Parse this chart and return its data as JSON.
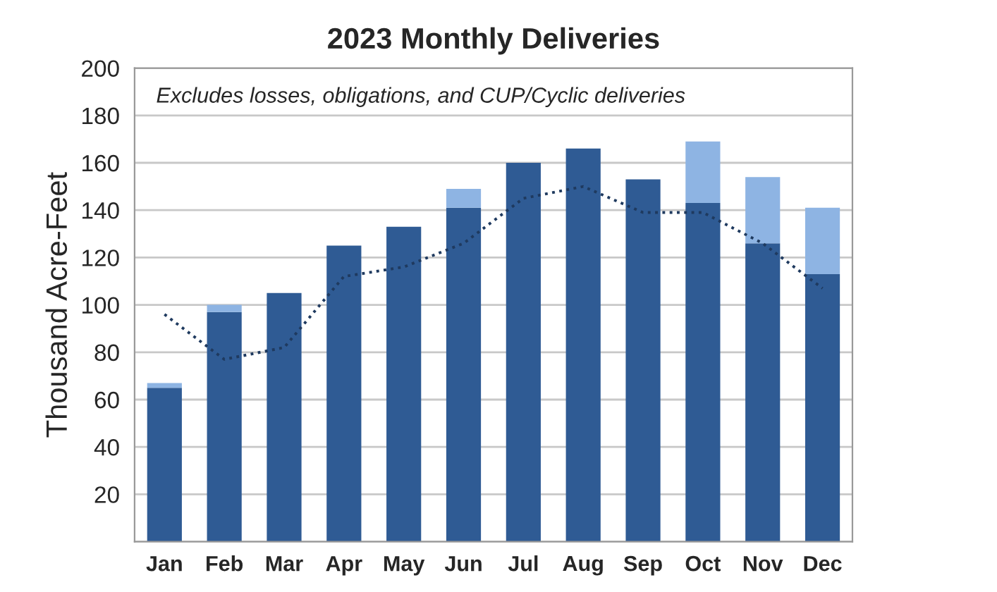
{
  "chart_data": {
    "type": "bar",
    "title": "2023 Monthly Deliveries",
    "ylabel": "Thousand Acre-Feet",
    "annotations": [
      "Excludes losses, obligations, and CUP/Cyclic deliveries"
    ],
    "categories": [
      "Jan",
      "Feb",
      "Mar",
      "Apr",
      "May",
      "Jun",
      "Jul",
      "Aug",
      "Sep",
      "Oct",
      "Nov",
      "Dec"
    ],
    "stacked": true,
    "series": [
      {
        "color": "#2f5b94",
        "values": [
          65,
          97,
          105,
          125,
          133,
          141,
          160,
          166,
          153,
          143,
          126,
          113
        ]
      },
      {
        "color": "#8eb4e3",
        "values": [
          2,
          3,
          null,
          null,
          null,
          8,
          null,
          null,
          null,
          26,
          28,
          28
        ]
      },
      {
        "type": "line",
        "color": "#1f3a5f",
        "line_style": "dotted",
        "values": [
          96,
          77,
          82,
          112,
          116,
          126,
          145,
          150,
          139,
          139,
          126,
          107
        ]
      }
    ],
    "ylim": [
      0,
      200
    ],
    "yticks": [
      {
        "value": 0,
        "label": null
      },
      20,
      40,
      60,
      80,
      100,
      120,
      140,
      160,
      180,
      200
    ],
    "grid": "y",
    "legend": false
  }
}
